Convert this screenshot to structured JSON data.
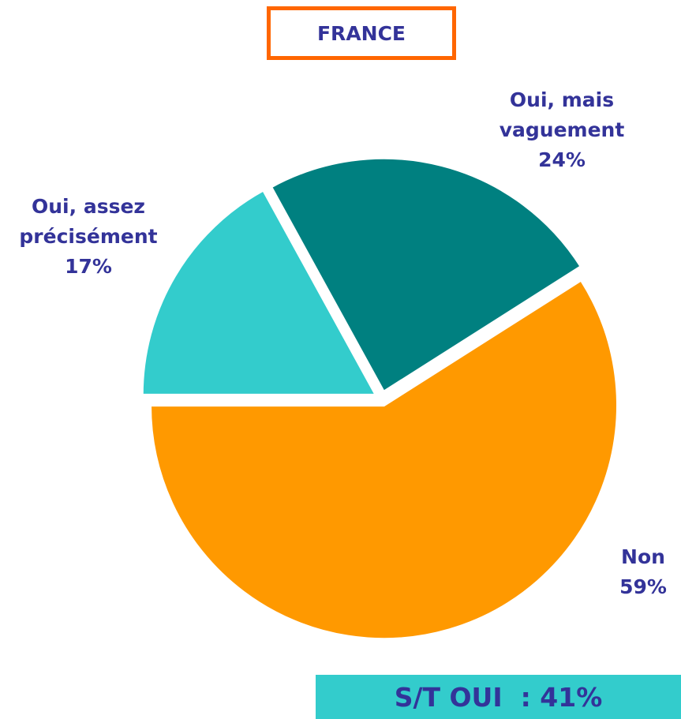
{
  "chart_data": {
    "type": "pie",
    "title": "FRANCE",
    "categories": [
      "Non",
      "Oui, mais\nvaguement",
      "Oui, assez\nprécisément"
    ],
    "values": [
      59,
      24,
      17
    ],
    "value_labels": [
      "59%",
      "24%",
      "17%"
    ],
    "colors": [
      "#ff9900",
      "#008080",
      "#33cccc"
    ],
    "summary": "S/T OUI  : 41%"
  }
}
